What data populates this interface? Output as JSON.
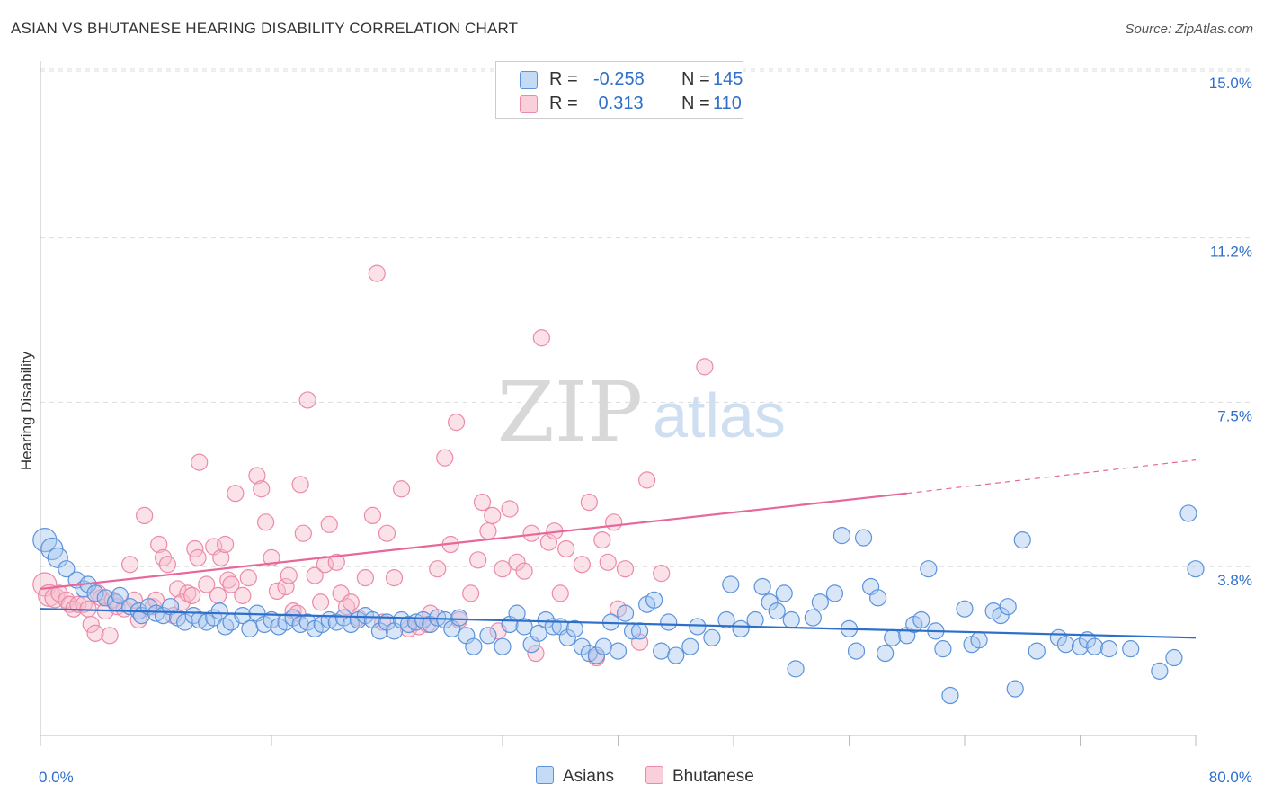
{
  "title": "ASIAN VS BHUTANESE HEARING DISABILITY CORRELATION CHART",
  "source": "Source: ZipAtlas.com",
  "watermark": {
    "zip": "ZIP",
    "atlas": "atlas"
  },
  "legend": {
    "rows": [
      {
        "r_label": "R =",
        "r_value": "-0.258",
        "n_label": "N =",
        "n_value": "145"
      },
      {
        "r_label": "R =",
        "r_value": " 0.313",
        "n_label": "N =",
        "n_value": "110"
      }
    ]
  },
  "bottom_legend": {
    "asians": "Asians",
    "bhutanese": "Bhutanese"
  },
  "colors": {
    "asians_fill": "#a9c8f0",
    "asians_stroke": "#5b93dc",
    "asians_line": "#2f6fc9",
    "bhutanese_fill": "#f7bccd",
    "bhutanese_stroke": "#ec8aa8",
    "bhutanese_line": "#e8679a",
    "tick_label": "#2f6fc9",
    "grid": "#dddddd"
  },
  "chart_data": {
    "type": "scatter",
    "title": "ASIAN VS BHUTANESE HEARING DISABILITY CORRELATION CHART",
    "ylabel": "Hearing Disability",
    "xlim": [
      0,
      80
    ],
    "ylim": [
      0,
      15.3
    ],
    "x_tick_labels": [
      "0.0%",
      "80.0%"
    ],
    "y_ticks": [
      3.8,
      7.5,
      11.2,
      15.0
    ],
    "y_tick_labels": [
      "3.8%",
      "7.5%",
      "11.2%",
      "15.0%"
    ],
    "grid": true,
    "series": [
      {
        "name": "Asians",
        "r": -0.258,
        "n": 145,
        "trend": {
          "x": [
            0,
            80
          ],
          "y": [
            2.85,
            2.2
          ]
        },
        "points": [
          [
            0.3,
            4.4
          ],
          [
            0.8,
            4.2
          ],
          [
            1.2,
            4.0
          ],
          [
            1.8,
            3.75
          ],
          [
            2.5,
            3.5
          ],
          [
            3.0,
            3.3
          ],
          [
            3.3,
            3.4
          ],
          [
            3.8,
            3.2
          ],
          [
            4.5,
            3.1
          ],
          [
            5.2,
            3.0
          ],
          [
            5.5,
            3.15
          ],
          [
            6.2,
            2.9
          ],
          [
            6.8,
            2.8
          ],
          [
            7.0,
            2.7
          ],
          [
            7.5,
            2.9
          ],
          [
            8.0,
            2.75
          ],
          [
            8.5,
            2.7
          ],
          [
            9.0,
            2.9
          ],
          [
            9.5,
            2.65
          ],
          [
            10.0,
            2.55
          ],
          [
            10.6,
            2.7
          ],
          [
            11.0,
            2.6
          ],
          [
            11.5,
            2.55
          ],
          [
            12.0,
            2.65
          ],
          [
            12.4,
            2.8
          ],
          [
            12.8,
            2.45
          ],
          [
            13.2,
            2.55
          ],
          [
            14.0,
            2.7
          ],
          [
            14.5,
            2.4
          ],
          [
            15.0,
            2.75
          ],
          [
            15.5,
            2.5
          ],
          [
            16.0,
            2.6
          ],
          [
            16.5,
            2.45
          ],
          [
            17.0,
            2.55
          ],
          [
            17.5,
            2.65
          ],
          [
            18.0,
            2.5
          ],
          [
            18.5,
            2.55
          ],
          [
            19.0,
            2.4
          ],
          [
            19.5,
            2.5
          ],
          [
            20.0,
            2.6
          ],
          [
            20.5,
            2.55
          ],
          [
            21.0,
            2.65
          ],
          [
            21.5,
            2.5
          ],
          [
            22.0,
            2.6
          ],
          [
            22.5,
            2.7
          ],
          [
            23.0,
            2.6
          ],
          [
            23.5,
            2.35
          ],
          [
            24.0,
            2.55
          ],
          [
            24.5,
            2.35
          ],
          [
            25.0,
            2.6
          ],
          [
            25.5,
            2.5
          ],
          [
            26.0,
            2.55
          ],
          [
            26.5,
            2.6
          ],
          [
            27.0,
            2.5
          ],
          [
            27.5,
            2.65
          ],
          [
            28.0,
            2.6
          ],
          [
            28.5,
            2.4
          ],
          [
            29.0,
            2.65
          ],
          [
            29.5,
            2.25
          ],
          [
            30.0,
            2.0
          ],
          [
            31.0,
            2.25
          ],
          [
            32.0,
            2.0
          ],
          [
            32.5,
            2.5
          ],
          [
            33.0,
            2.75
          ],
          [
            33.5,
            2.45
          ],
          [
            34.0,
            2.05
          ],
          [
            34.5,
            2.3
          ],
          [
            35.0,
            2.6
          ],
          [
            35.5,
            2.45
          ],
          [
            36.0,
            2.45
          ],
          [
            36.5,
            2.2
          ],
          [
            37.0,
            2.4
          ],
          [
            37.5,
            2.0
          ],
          [
            38.0,
            1.85
          ],
          [
            38.5,
            1.8
          ],
          [
            39.0,
            2.0
          ],
          [
            39.5,
            2.55
          ],
          [
            40.0,
            1.9
          ],
          [
            40.5,
            2.75
          ],
          [
            41.0,
            2.35
          ],
          [
            41.5,
            2.35
          ],
          [
            42.0,
            2.95
          ],
          [
            42.5,
            3.05
          ],
          [
            43.0,
            1.9
          ],
          [
            43.5,
            2.55
          ],
          [
            44.0,
            1.8
          ],
          [
            45.0,
            2.0
          ],
          [
            45.5,
            2.45
          ],
          [
            46.5,
            2.2
          ],
          [
            47.5,
            2.6
          ],
          [
            47.8,
            3.4
          ],
          [
            48.5,
            2.4
          ],
          [
            49.5,
            2.6
          ],
          [
            50.0,
            3.35
          ],
          [
            50.5,
            3.0
          ],
          [
            51.0,
            2.8
          ],
          [
            51.5,
            3.2
          ],
          [
            52.0,
            2.6
          ],
          [
            52.3,
            1.5
          ],
          [
            53.5,
            2.65
          ],
          [
            54.0,
            3.0
          ],
          [
            55.0,
            3.2
          ],
          [
            55.5,
            4.5
          ],
          [
            56.0,
            2.4
          ],
          [
            56.5,
            1.9
          ],
          [
            57.0,
            4.45
          ],
          [
            57.5,
            3.35
          ],
          [
            58.0,
            3.1
          ],
          [
            58.5,
            1.85
          ],
          [
            59.0,
            2.2
          ],
          [
            60.0,
            2.25
          ],
          [
            60.5,
            2.5
          ],
          [
            61.0,
            2.6
          ],
          [
            61.5,
            3.75
          ],
          [
            62.0,
            2.35
          ],
          [
            62.5,
            1.95
          ],
          [
            63.0,
            0.9
          ],
          [
            64.0,
            2.85
          ],
          [
            64.5,
            2.05
          ],
          [
            65.0,
            2.15
          ],
          [
            66.0,
            2.8
          ],
          [
            66.5,
            2.7
          ],
          [
            67.0,
            2.9
          ],
          [
            67.5,
            1.05
          ],
          [
            68.0,
            4.4
          ],
          [
            69.0,
            1.9
          ],
          [
            70.5,
            2.2
          ],
          [
            71.0,
            2.05
          ],
          [
            72.0,
            2.0
          ],
          [
            72.5,
            2.15
          ],
          [
            73.0,
            2.0
          ],
          [
            74.0,
            1.95
          ],
          [
            75.5,
            1.95
          ],
          [
            77.5,
            1.45
          ],
          [
            78.5,
            1.75
          ],
          [
            79.5,
            5.0
          ],
          [
            80.0,
            3.75
          ]
        ]
      },
      {
        "name": "Bhutanese",
        "r": 0.313,
        "n": 110,
        "trend": {
          "x": [
            0,
            60
          ],
          "y": [
            3.3,
            5.45
          ]
        },
        "trend_dashed": {
          "x": [
            60,
            80
          ],
          "y": [
            5.45,
            6.2
          ]
        },
        "points": [
          [
            0.3,
            3.4
          ],
          [
            0.6,
            3.15
          ],
          [
            1.0,
            3.1
          ],
          [
            1.3,
            3.2
          ],
          [
            1.8,
            3.05
          ],
          [
            2.0,
            2.95
          ],
          [
            2.3,
            2.85
          ],
          [
            2.6,
            2.95
          ],
          [
            3.0,
            2.95
          ],
          [
            3.3,
            2.85
          ],
          [
            3.5,
            2.5
          ],
          [
            3.8,
            2.3
          ],
          [
            4.0,
            3.2
          ],
          [
            4.2,
            3.1
          ],
          [
            4.5,
            2.8
          ],
          [
            4.8,
            2.25
          ],
          [
            5.0,
            3.05
          ],
          [
            5.3,
            2.9
          ],
          [
            5.8,
            2.85
          ],
          [
            6.2,
            3.85
          ],
          [
            6.5,
            3.05
          ],
          [
            6.8,
            2.6
          ],
          [
            7.2,
            4.95
          ],
          [
            7.8,
            2.9
          ],
          [
            8.0,
            3.05
          ],
          [
            8.2,
            4.3
          ],
          [
            8.5,
            4.0
          ],
          [
            8.8,
            3.85
          ],
          [
            9.2,
            2.7
          ],
          [
            9.5,
            3.3
          ],
          [
            9.8,
            3.0
          ],
          [
            10.2,
            3.2
          ],
          [
            10.5,
            3.15
          ],
          [
            10.7,
            4.2
          ],
          [
            10.9,
            4.0
          ],
          [
            11.0,
            6.15
          ],
          [
            11.5,
            3.4
          ],
          [
            12.0,
            4.25
          ],
          [
            12.3,
            3.15
          ],
          [
            12.5,
            4.0
          ],
          [
            12.8,
            4.3
          ],
          [
            13.0,
            3.5
          ],
          [
            13.2,
            3.4
          ],
          [
            13.5,
            5.45
          ],
          [
            14.0,
            3.15
          ],
          [
            14.4,
            3.55
          ],
          [
            15.0,
            5.85
          ],
          [
            15.3,
            5.55
          ],
          [
            15.6,
            4.8
          ],
          [
            16.0,
            4.0
          ],
          [
            16.4,
            3.25
          ],
          [
            17.0,
            3.35
          ],
          [
            17.2,
            3.6
          ],
          [
            17.5,
            2.8
          ],
          [
            17.8,
            2.75
          ],
          [
            18.0,
            5.65
          ],
          [
            18.2,
            4.55
          ],
          [
            18.5,
            7.55
          ],
          [
            19.0,
            3.6
          ],
          [
            19.4,
            3.0
          ],
          [
            19.7,
            3.85
          ],
          [
            20.0,
            4.75
          ],
          [
            20.5,
            3.9
          ],
          [
            20.8,
            3.2
          ],
          [
            21.2,
            2.9
          ],
          [
            21.5,
            3.0
          ],
          [
            22.0,
            2.65
          ],
          [
            22.5,
            3.55
          ],
          [
            23.0,
            4.95
          ],
          [
            23.3,
            10.4
          ],
          [
            23.7,
            2.55
          ],
          [
            24.0,
            4.55
          ],
          [
            24.5,
            3.55
          ],
          [
            25.0,
            5.55
          ],
          [
            25.5,
            2.4
          ],
          [
            26.2,
            2.45
          ],
          [
            26.8,
            2.5
          ],
          [
            27.0,
            2.75
          ],
          [
            27.5,
            3.75
          ],
          [
            28.0,
            6.25
          ],
          [
            28.4,
            4.3
          ],
          [
            28.8,
            7.05
          ],
          [
            29.0,
            2.6
          ],
          [
            29.8,
            3.2
          ],
          [
            30.3,
            3.95
          ],
          [
            30.6,
            5.25
          ],
          [
            31.0,
            4.6
          ],
          [
            31.3,
            4.95
          ],
          [
            31.7,
            2.35
          ],
          [
            32.0,
            3.75
          ],
          [
            32.5,
            5.1
          ],
          [
            33.0,
            3.9
          ],
          [
            33.5,
            3.7
          ],
          [
            34.0,
            4.55
          ],
          [
            34.3,
            1.85
          ],
          [
            34.7,
            8.95
          ],
          [
            35.2,
            4.35
          ],
          [
            35.6,
            4.6
          ],
          [
            36.0,
            3.2
          ],
          [
            36.4,
            4.2
          ],
          [
            37.5,
            3.85
          ],
          [
            38.0,
            5.25
          ],
          [
            38.5,
            1.75
          ],
          [
            38.9,
            4.4
          ],
          [
            39.3,
            3.9
          ],
          [
            39.7,
            4.8
          ],
          [
            40.0,
            2.85
          ],
          [
            40.5,
            3.75
          ],
          [
            41.5,
            2.1
          ],
          [
            42.0,
            5.75
          ],
          [
            43.0,
            3.65
          ],
          [
            46.0,
            8.3
          ]
        ]
      }
    ]
  }
}
